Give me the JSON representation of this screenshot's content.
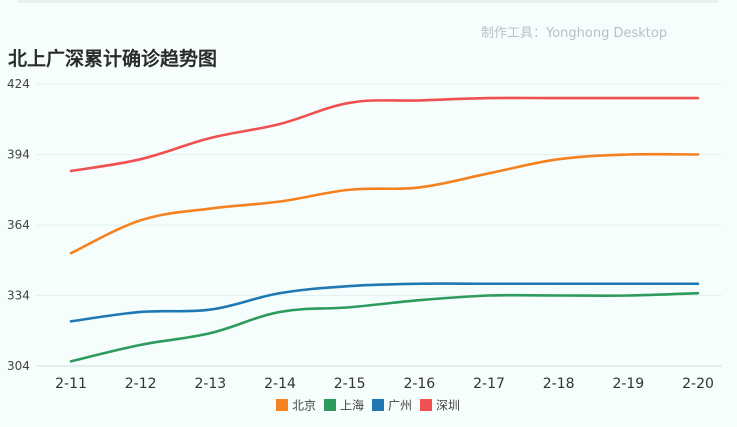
{
  "tool_credit": "制作工具：Yonghong Desktop",
  "chart_data": {
    "type": "line",
    "title": "北上广深累计确诊趋势图",
    "xlabel": "",
    "ylabel": "",
    "categories": [
      "2-11",
      "2-12",
      "2-13",
      "2-14",
      "2-15",
      "2-16",
      "2-17",
      "2-18",
      "2-19",
      "2-20"
    ],
    "yticks": [
      304,
      334,
      364,
      394,
      424
    ],
    "ylim": [
      304,
      424
    ],
    "grid": true,
    "legend_position": "bottom",
    "series": [
      {
        "name": "北京",
        "color": "#f5821f",
        "values": [
          352,
          366,
          371,
          374,
          379,
          380,
          386,
          392,
          394,
          394
        ]
      },
      {
        "name": "上海",
        "color": "#2e9b5e",
        "values": [
          306,
          313,
          318,
          327,
          329,
          332,
          334,
          334,
          334,
          335
        ]
      },
      {
        "name": "广州",
        "color": "#1f77b4",
        "values": [
          323,
          327,
          328,
          335,
          338,
          339,
          339,
          339,
          339,
          339
        ]
      },
      {
        "name": "深圳",
        "color": "#f0504f",
        "values": [
          387,
          392,
          401,
          407,
          416,
          417,
          418,
          418,
          418,
          418
        ]
      }
    ]
  }
}
